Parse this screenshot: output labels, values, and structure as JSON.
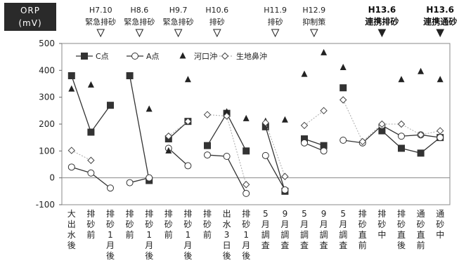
{
  "chart_data": {
    "type": "line",
    "ylabel": [
      "ORP",
      "(mV)"
    ],
    "ylim": [
      -100,
      500
    ],
    "yticks": [
      -100,
      0,
      100,
      200,
      300,
      400,
      500
    ],
    "categories": [
      "大出水後",
      "排砂前",
      "排砂1月後",
      "排砂前",
      "排砂1月後",
      "排砂前",
      "排砂1月後",
      "排砂前",
      "出水3日後",
      "排砂1月後",
      "5月調査",
      "9月調査",
      "5月調査",
      "9月調査",
      "5月調査",
      "排砂直前",
      "排砂中",
      "排砂直後",
      "通砂直前",
      "通砂中"
    ],
    "events": [
      {
        "date": "H7.10",
        "label": "緊急排砂",
        "cat": 1.5,
        "bold": false
      },
      {
        "date": "H8.6",
        "label": "緊急排砂",
        "cat": 3.5,
        "bold": false
      },
      {
        "date": "H9.7",
        "label": "緊急排砂",
        "cat": 5.5,
        "bold": false
      },
      {
        "date": "H10.6",
        "label": "排砂",
        "cat": 7.5,
        "bold": false
      },
      {
        "date": "H11.9",
        "label": "排砂",
        "cat": 10.5,
        "bold": false
      },
      {
        "date": "H12.9",
        "label": "抑制策",
        "cat": 12.5,
        "bold": false
      },
      {
        "date": "H13.6",
        "label": "連携排砂",
        "cat": 16.0,
        "bold": true
      },
      {
        "date": "H13.6",
        "label": "連携通砂",
        "cat": 19.0,
        "bold": true
      }
    ],
    "series": [
      {
        "name": "C点",
        "marker": "square-filled",
        "line": "solid",
        "segments": [
          [
            [
              0,
              380
            ],
            [
              1,
              170
            ],
            [
              2,
              270
            ]
          ],
          [
            [
              3,
              380
            ],
            [
              4,
              -10
            ]
          ],
          [
            [
              5,
              145
            ],
            [
              6,
              210
            ]
          ],
          [
            [
              7,
              120
            ],
            [
              8,
              240
            ],
            [
              9,
              100
            ]
          ],
          [
            [
              10,
              190
            ],
            [
              11,
              -50
            ]
          ],
          [
            [
              12,
              145
            ],
            [
              13,
              120
            ]
          ],
          [
            [
              14,
              335
            ]
          ],
          [
            [
              16,
              175
            ],
            [
              17,
              110
            ],
            [
              18,
              92
            ],
            [
              19,
              150
            ]
          ]
        ]
      },
      {
        "name": "A点",
        "marker": "circle-open",
        "line": "solid",
        "segments": [
          [
            [
              0,
              40
            ],
            [
              1,
              18
            ],
            [
              2,
              -38
            ]
          ],
          [
            [
              3,
              -18
            ],
            [
              4,
              0
            ]
          ],
          [
            [
              5,
              110
            ],
            [
              6,
              45
            ]
          ],
          [
            [
              7,
              85
            ],
            [
              8,
              80
            ],
            [
              9,
              -58
            ]
          ],
          [
            [
              10,
              83
            ],
            [
              11,
              -45
            ]
          ],
          [
            [
              12,
              130
            ],
            [
              13,
              100
            ]
          ],
          [
            [
              14,
              140
            ],
            [
              15,
              130
            ],
            [
              16,
              195
            ],
            [
              17,
              155
            ],
            [
              18,
              160
            ],
            [
              19,
              150
            ]
          ]
        ]
      },
      {
        "name": "河口沖",
        "marker": "triangle-filled",
        "line": "none",
        "points": [
          [
            0,
            330
          ],
          [
            1,
            345
          ],
          [
            4,
            255
          ],
          [
            5,
            100
          ],
          [
            6,
            365
          ],
          [
            8,
            245
          ],
          [
            9,
            220
          ],
          [
            10,
            210
          ],
          [
            11,
            215
          ],
          [
            12,
            385
          ],
          [
            13,
            465
          ],
          [
            14,
            410
          ],
          [
            17,
            365
          ],
          [
            18,
            395
          ],
          [
            19,
            365
          ]
        ]
      },
      {
        "name": "生地鼻沖",
        "marker": "diamond-open",
        "line": "dotted",
        "segments": [
          [
            [
              0,
              102
            ],
            [
              1,
              65
            ]
          ],
          [
            [
              5,
              155
            ],
            [
              6,
              210
            ]
          ],
          [
            [
              7,
              235
            ],
            [
              8,
              230
            ],
            [
              9,
              -25
            ]
          ],
          [
            [
              10,
              205
            ],
            [
              11,
              5
            ]
          ],
          [
            [
              12,
              195
            ],
            [
              13,
              250
            ]
          ],
          [
            [
              14,
              290
            ],
            [
              15,
              135
            ],
            [
              16,
              200
            ],
            [
              17,
              200
            ],
            [
              18,
              160
            ],
            [
              19,
              175
            ]
          ]
        ]
      }
    ]
  }
}
